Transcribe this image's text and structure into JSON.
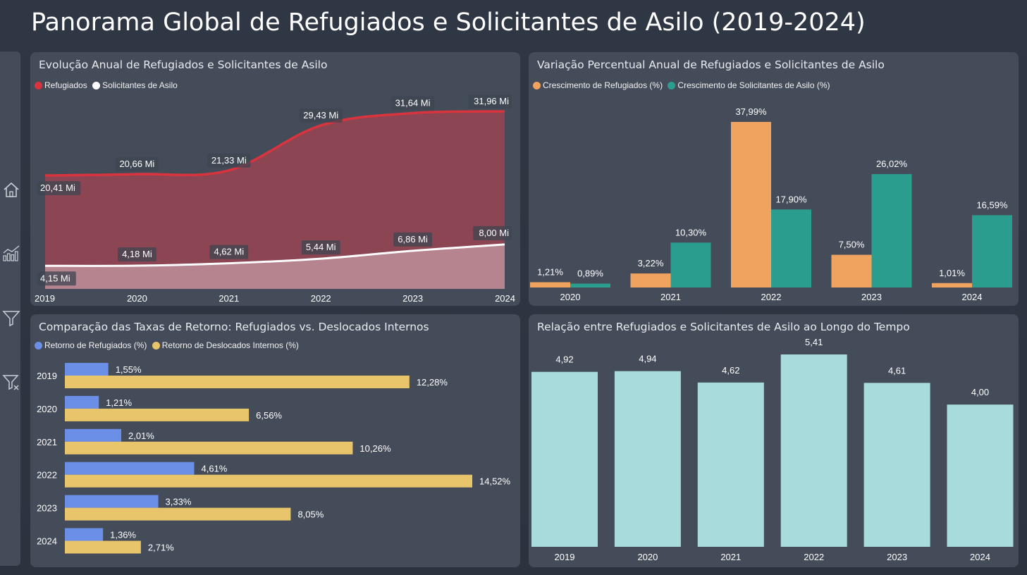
{
  "title": "Panorama Global de Refugiados e Solicitantes de Asilo (2019-2024)",
  "sidebar": {
    "icons": [
      "home-icon",
      "analytics-chart-icon",
      "filter-icon",
      "clear-filter-icon"
    ]
  },
  "colors": {
    "refugees_line": "#d9343e",
    "refugees_area": "#8b4553",
    "asylum_line": "#ffffff",
    "asylum_area": "#b6848e",
    "growth_refugees": "#f0a35e",
    "growth_asylum": "#2a9d8f",
    "return_refugees": "#6b8fe6",
    "return_idp": "#e8c46a",
    "ratio_bar": "#a8dbdb"
  },
  "chart_data": [
    {
      "id": "evolucao",
      "type": "area",
      "title": "Evolução Anual de Refugiados e Solicitantes de Asilo",
      "x": [
        "2019",
        "2020",
        "2021",
        "2022",
        "2023",
        "2024"
      ],
      "series": [
        {
          "name": "Refugiados",
          "values": [
            20.41,
            20.66,
            21.33,
            29.43,
            31.64,
            31.96
          ],
          "labels": [
            "20,41 Mi",
            "20,66 Mi",
            "21,33 Mi",
            "29,43 Mi",
            "31,64 Mi",
            "31,96 Mi"
          ]
        },
        {
          "name": "Solicitantes de Asilo",
          "values": [
            4.15,
            4.18,
            4.62,
            5.44,
            6.86,
            8.0
          ],
          "labels": [
            "4,15 Mi",
            "4,18 Mi",
            "4,62 Mi",
            "5,44 Mi",
            "6,86 Mi",
            "8,00 Mi"
          ]
        }
      ],
      "ylim": [
        0,
        35
      ],
      "legend": "top-left"
    },
    {
      "id": "variacao",
      "type": "bar",
      "title": "Variação Percentual Anual de Refugiados e Solicitantes de Asilo",
      "categories": [
        "2020",
        "2021",
        "2022",
        "2023",
        "2024"
      ],
      "series": [
        {
          "name": "Crescimento de Refugiados (%)",
          "values": [
            1.21,
            3.22,
            37.99,
            7.5,
            1.01
          ],
          "labels": [
            "1,21%",
            "3,22%",
            "37,99%",
            "7,50%",
            "1,01%"
          ]
        },
        {
          "name": "Crescimento de Solicitantes de Asilo (%)",
          "values": [
            0.89,
            10.3,
            17.9,
            26.02,
            16.59
          ],
          "labels": [
            "0,89%",
            "10,30%",
            "17,90%",
            "26,02%",
            "16,59%"
          ]
        }
      ],
      "ylim": [
        0,
        38
      ],
      "legend": "top-left"
    },
    {
      "id": "retorno",
      "type": "bar",
      "orientation": "horizontal",
      "title": "Comparação das Taxas de Retorno: Refugiados vs. Deslocados Internos",
      "categories": [
        "2019",
        "2020",
        "2021",
        "2022",
        "2023",
        "2024"
      ],
      "series": [
        {
          "name": "Retorno de Refugiados (%)",
          "values": [
            1.55,
            1.21,
            2.01,
            4.61,
            3.33,
            1.36
          ],
          "labels": [
            "1,55%",
            "1,21%",
            "2,01%",
            "4,61%",
            "3,33%",
            "1,36%"
          ]
        },
        {
          "name": "Retorno de Deslocados Internos (%)",
          "values": [
            12.28,
            6.56,
            10.26,
            14.52,
            8.05,
            2.71
          ],
          "labels": [
            "12,28%",
            "6,56%",
            "10,26%",
            "14,52%",
            "8,05%",
            "2,71%"
          ]
        }
      ],
      "xlim": [
        0,
        14.52
      ],
      "legend": "top-left"
    },
    {
      "id": "relacao",
      "type": "bar",
      "title": "Relação entre Refugiados e Solicitantes de Asilo ao Longo do Tempo",
      "categories": [
        "2019",
        "2020",
        "2021",
        "2022",
        "2023",
        "2024"
      ],
      "values": [
        4.92,
        4.94,
        4.62,
        5.41,
        4.61,
        4.0
      ],
      "labels": [
        "4,92",
        "4,94",
        "4,62",
        "5,41",
        "4,61",
        "4,00"
      ],
      "ylim": [
        0,
        5.41
      ]
    }
  ]
}
